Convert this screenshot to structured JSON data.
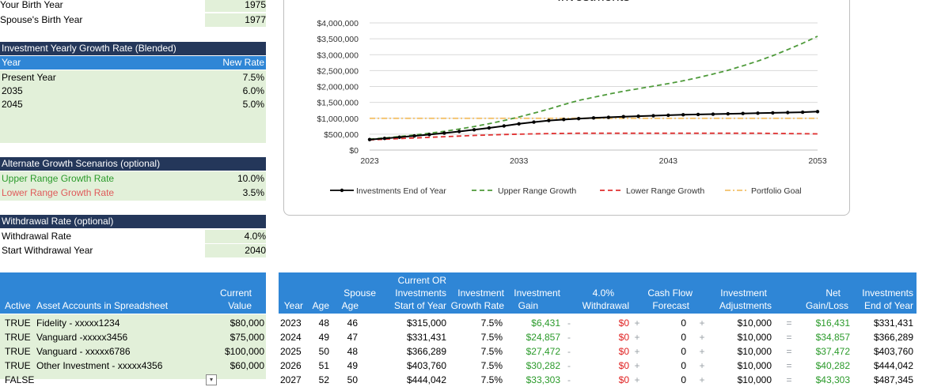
{
  "birth": {
    "your_label": "Your Birth Year",
    "your_value": "1975",
    "spouse_label": "Spouse's Birth Year",
    "spouse_value": "1977"
  },
  "growth": {
    "title": "Investment Yearly Growth Rate (Blended)",
    "col_year": "Year",
    "col_rate": "New Rate",
    "rows": [
      {
        "year": "Present Year",
        "rate": "7.5%"
      },
      {
        "year": "2035",
        "rate": "6.0%"
      },
      {
        "year": "2045",
        "rate": "5.0%"
      }
    ]
  },
  "alternate": {
    "title": "Alternate Growth Scenarios (optional)",
    "upper_label": "Upper Range Growth Rate",
    "upper_value": "10.0%",
    "lower_label": "Lower Range Growth Rate",
    "lower_value": "3.5%"
  },
  "withdrawal": {
    "title": "Withdrawal Rate (optional)",
    "rate_label": "Withdrawal Rate",
    "rate_value": "4.0%",
    "start_label": "Start Withdrawal Year",
    "start_value": "2040"
  },
  "accounts": {
    "header": {
      "active": "Active",
      "name": "Asset Accounts in Spreadsheet",
      "value_l1": "Current",
      "value_l2": "Value"
    },
    "rows": [
      {
        "active": "TRUE",
        "name": "Fidelity - xxxxx1234",
        "value": "$80,000"
      },
      {
        "active": "TRUE",
        "name": "Vanguard -xxxxx3456",
        "value": "$75,000"
      },
      {
        "active": "TRUE",
        "name": "Vanguard - xxxxx6786",
        "value": "$100,000"
      },
      {
        "active": "TRUE",
        "name": "Other Investment - xxxxx4356",
        "value": "$60,000"
      },
      {
        "active": "FALSE",
        "name": "",
        "value": ""
      }
    ]
  },
  "projection": {
    "headers": {
      "year": "Year",
      "age": "Age",
      "spouse_l1": "Spouse",
      "spouse_l2": "Age",
      "start_l0": "Current OR",
      "start_l1": "Investments",
      "start_l2": "Start of Year",
      "rate_l1": "Investment",
      "rate_l2": "Growth Rate",
      "gain_l1": "Investment",
      "gain_l2": "Gain",
      "wd_l1": "4.0%",
      "wd_l2": "Withdrawal",
      "cf_l1": "Cash Flow",
      "cf_l2": "Forecast",
      "adj_l1": "Investment",
      "adj_l2": "Adjustments",
      "net_l1": "Net",
      "net_l2": "Gain/Loss",
      "end_l1": "Investments",
      "end_l2": "End of Year"
    },
    "rows": [
      {
        "year": "2023",
        "age": "48",
        "spouse": "46",
        "start": "$315,000",
        "rate": "7.5%",
        "gain": "$6,431",
        "wd": "$0",
        "cf": "0",
        "adj": "$10,000",
        "net": "$16,431",
        "end": "$331,431"
      },
      {
        "year": "2024",
        "age": "49",
        "spouse": "47",
        "start": "$331,431",
        "rate": "7.5%",
        "gain": "$24,857",
        "wd": "$0",
        "cf": "0",
        "adj": "$10,000",
        "net": "$34,857",
        "end": "$366,289"
      },
      {
        "year": "2025",
        "age": "50",
        "spouse": "48",
        "start": "$366,289",
        "rate": "7.5%",
        "gain": "$27,472",
        "wd": "$0",
        "cf": "0",
        "adj": "$10,000",
        "net": "$37,472",
        "end": "$403,760"
      },
      {
        "year": "2026",
        "age": "51",
        "spouse": "49",
        "start": "$403,760",
        "rate": "7.5%",
        "gain": "$30,282",
        "wd": "$0",
        "cf": "0",
        "adj": "$10,000",
        "net": "$40,282",
        "end": "$444,042"
      },
      {
        "year": "2027",
        "age": "52",
        "spouse": "50",
        "start": "$444,042",
        "rate": "7.5%",
        "gain": "$33,303",
        "wd": "$0",
        "cf": "0",
        "adj": "$10,000",
        "net": "$43,303",
        "end": "$487,345"
      }
    ],
    "ops": {
      "minus": "-",
      "plus": "+",
      "equals": "="
    }
  },
  "chart_data": {
    "type": "line",
    "title": "Investments",
    "x_ticks": [
      "2023",
      "2033",
      "2043",
      "2053"
    ],
    "y_ticks": [
      "$4,000,000",
      "$3,500,000",
      "$3,000,000",
      "$2,500,000",
      "$2,000,000",
      "$1,500,000",
      "$1,000,000",
      "$500,000",
      "$0"
    ],
    "ylim": [
      0,
      4000000
    ],
    "xlim": [
      2023,
      2053
    ],
    "grid": true,
    "legend_position": "bottom",
    "x": [
      2023,
      2024,
      2025,
      2026,
      2027,
      2028,
      2029,
      2030,
      2031,
      2032,
      2033,
      2034,
      2035,
      2036,
      2037,
      2038,
      2039,
      2040,
      2041,
      2042,
      2043,
      2044,
      2045,
      2046,
      2047,
      2048,
      2049,
      2050,
      2051,
      2052,
      2053
    ],
    "series": [
      {
        "name": "Investments End of Year",
        "color": "#000000",
        "style": "solid-markers",
        "values": [
          331431,
          366289,
          403760,
          444042,
          487345,
          533900,
          584000,
          637800,
          695700,
          757900,
          824800,
          880000,
          930000,
          960000,
          990000,
          1010000,
          1030000,
          1050000,
          1065000,
          1080000,
          1095000,
          1110000,
          1120000,
          1130000,
          1140000,
          1150000,
          1160000,
          1170000,
          1180000,
          1190000,
          1210000
        ]
      },
      {
        "name": "Upper Range Growth",
        "color": "#4e9a3a",
        "style": "dashed",
        "values": [
          340000,
          380000,
          425000,
          475000,
          530000,
          590000,
          660000,
          740000,
          830000,
          930000,
          1040000,
          1160000,
          1290000,
          1430000,
          1560000,
          1660000,
          1760000,
          1850000,
          1930000,
          2010000,
          2090000,
          2180000,
          2280000,
          2390000,
          2510000,
          2650000,
          2800000,
          2970000,
          3160000,
          3360000,
          3580000
        ]
      },
      {
        "name": "Lower Range Growth",
        "color": "#e03030",
        "style": "dashed",
        "values": [
          320000,
          340000,
          360000,
          380000,
          400000,
          420000,
          440000,
          460000,
          475000,
          490000,
          500000,
          510000,
          520000,
          525000,
          530000,
          530000,
          530000,
          530000,
          530000,
          530000,
          530000,
          530000,
          530000,
          530000,
          530000,
          530000,
          530000,
          525000,
          520000,
          515000,
          510000
        ]
      },
      {
        "name": "Portfolio Goal",
        "color": "#f3c069",
        "style": "dashdot",
        "values": [
          1000000,
          1000000,
          1000000,
          1000000,
          1000000,
          1000000,
          1000000,
          1000000,
          1000000,
          1000000,
          1000000,
          1000000,
          1000000,
          1000000,
          1000000,
          1000000,
          1000000,
          1000000,
          1000000,
          1000000,
          1000000,
          1000000,
          1000000,
          1000000,
          1000000,
          1000000,
          1000000,
          1000000,
          1000000,
          1000000,
          1000000
        ]
      }
    ]
  }
}
